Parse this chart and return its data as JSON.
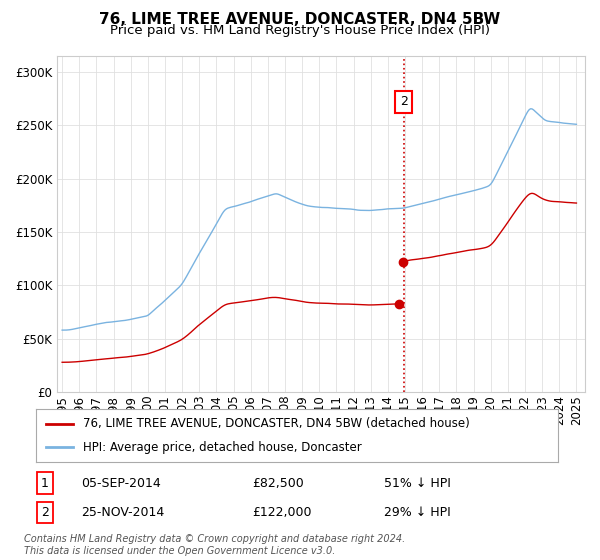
{
  "title": "76, LIME TREE AVENUE, DONCASTER, DN4 5BW",
  "subtitle": "Price paid vs. HM Land Registry's House Price Index (HPI)",
  "ylabel_ticks": [
    "£0",
    "£50K",
    "£100K",
    "£150K",
    "£200K",
    "£250K",
    "£300K"
  ],
  "ytick_values": [
    0,
    50000,
    100000,
    150000,
    200000,
    250000,
    300000
  ],
  "ylim": [
    0,
    315000
  ],
  "xlim_start": 1994.7,
  "xlim_end": 2025.5,
  "sale1_date": 2014.67,
  "sale1_price": 82500,
  "sale2_date": 2014.9,
  "sale2_price": 122000,
  "vline_x": 2014.92,
  "hpi_color": "#7ab3e0",
  "price_color": "#cc0000",
  "legend_entry1": "76, LIME TREE AVENUE, DONCASTER, DN4 5BW (detached house)",
  "legend_entry2": "HPI: Average price, detached house, Doncaster",
  "annotation1_label": "1",
  "annotation1_date": "05-SEP-2014",
  "annotation1_price": "£82,500",
  "annotation1_hpi": "51% ↓ HPI",
  "annotation2_label": "2",
  "annotation2_date": "25-NOV-2014",
  "annotation2_price": "£122,000",
  "annotation2_hpi": "29% ↓ HPI",
  "footer": "Contains HM Land Registry data © Crown copyright and database right 2024.\nThis data is licensed under the Open Government Licence v3.0.",
  "background_color": "#ffffff",
  "grid_color": "#e0e0e0",
  "title_fontsize": 11,
  "subtitle_fontsize": 9.5,
  "tick_fontsize": 8.5,
  "legend_fontsize": 8.5,
  "table_fontsize": 9,
  "footer_fontsize": 7
}
